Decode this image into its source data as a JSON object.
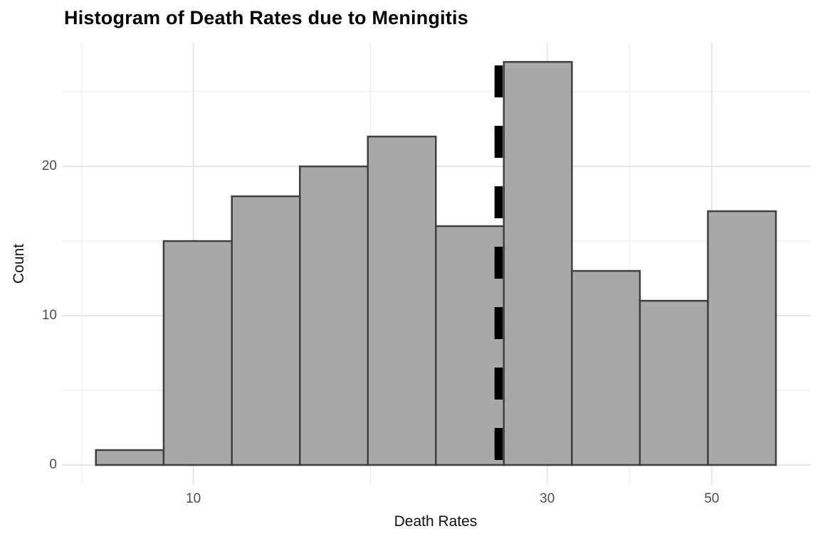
{
  "title": "Histogram of Death Rates due to Meningitis",
  "axes": {
    "x_label": "Death Rates",
    "y_label": "Count"
  },
  "chart_data": {
    "type": "bar",
    "subtype": "histogram",
    "title": "Histogram of Death Rates due to Meningitis",
    "xlabel": "Death Rates",
    "ylabel": "Count",
    "x_scale": "log10",
    "bin_edges": [
      7.39,
      9.12,
      11.27,
      13.92,
      17.19,
      21.23,
      26.22,
      32.39,
      40.0,
      49.41,
      61.02
    ],
    "counts": [
      1,
      15,
      18,
      20,
      22,
      16,
      27,
      13,
      11,
      17
    ],
    "x_ticks_major": [
      10,
      30,
      50
    ],
    "x_tick_labels": [
      "10",
      "30",
      "50"
    ],
    "x_ticks_minor": [
      7.07,
      17.32,
      38.73
    ],
    "y_ticks_major": [
      0,
      10,
      20
    ],
    "y_tick_labels": [
      "0",
      "10",
      "20"
    ],
    "y_ticks_minor": [
      5,
      15,
      25
    ],
    "xlim": [
      6.65,
      67.84
    ],
    "ylim": [
      -1.33,
      28.29
    ],
    "vline": {
      "x": 25.8,
      "style": "dashed",
      "color": "#000000"
    },
    "grid": "major+minor",
    "legend": "none",
    "colors": {
      "bar_fill": "#a9a9a9",
      "bar_stroke": "#3f3f3f",
      "grid_major": "#e6e6e6",
      "grid_minor": "#f2f2f2",
      "tick_text": "#4d4d4d",
      "background": "#ffffff"
    }
  }
}
